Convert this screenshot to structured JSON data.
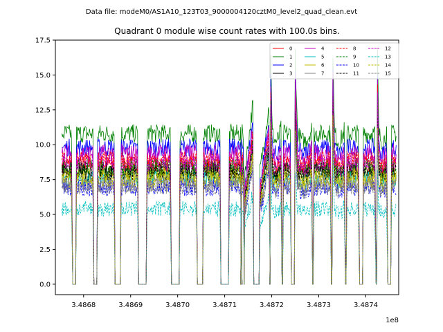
{
  "figure": {
    "suptitle": "Data file: modeM0/AS1A10_123T03_9000004120cztM0_level2_quad_clean.evt"
  },
  "chart_data": {
    "type": "line",
    "title": "Quadrant 0 module wise count rates with 100.0s bins.",
    "xlabel": "",
    "ylabel": "",
    "x_offset_label": "1e8",
    "xlim": [
      3.48674,
      3.48747
    ],
    "ylim": [
      -0.75,
      17.5
    ],
    "x_ticks": [
      3.4868,
      3.4869,
      3.487,
      3.4871,
      3.4872,
      3.4873,
      3.4874
    ],
    "x_tick_labels": [
      "3.4868",
      "3.4869",
      "3.4870",
      "3.4871",
      "3.4872",
      "3.4873",
      "3.4874"
    ],
    "y_ticks": [
      0,
      2.5,
      5,
      7.5,
      10,
      12.5,
      15,
      17.5
    ],
    "y_tick_labels": [
      "0.0",
      "2.5",
      "5.0",
      "7.5",
      "10.0",
      "12.5",
      "15.0",
      "17.5"
    ],
    "grid": false,
    "legend_position": "top-right",
    "legend_columns": 4,
    "series": [
      {
        "name": "0",
        "color": "#ff0000",
        "dash": "solid",
        "level": 8.6
      },
      {
        "name": "1",
        "color": "#008000",
        "dash": "solid",
        "level": 10.8
      },
      {
        "name": "2",
        "color": "#0000ff",
        "dash": "solid",
        "level": 9.8
      },
      {
        "name": "3",
        "color": "#000000",
        "dash": "solid",
        "level": 8.2
      },
      {
        "name": "4",
        "color": "#bf00bf",
        "dash": "solid",
        "level": 9.4
      },
      {
        "name": "5",
        "color": "#00bfbf",
        "dash": "solid",
        "level": 7.6
      },
      {
        "name": "6",
        "color": "#bfbf00",
        "dash": "solid",
        "level": 7.9
      },
      {
        "name": "7",
        "color": "#808080",
        "dash": "solid",
        "level": 7.2
      },
      {
        "name": "8",
        "color": "#ff0000",
        "dash": "dashed",
        "level": 8.9
      },
      {
        "name": "9",
        "color": "#008000",
        "dash": "dashed",
        "level": 8.4
      },
      {
        "name": "10",
        "color": "#0000ff",
        "dash": "dashed",
        "level": 6.9
      },
      {
        "name": "11",
        "color": "#000000",
        "dash": "dashed",
        "level": 8.0
      },
      {
        "name": "12",
        "color": "#bf00bf",
        "dash": "dashed",
        "level": 8.7
      },
      {
        "name": "13",
        "color": "#00bfbf",
        "dash": "dashed",
        "level": 5.4
      },
      {
        "name": "14",
        "color": "#bfbf00",
        "dash": "dashed",
        "level": 7.5
      },
      {
        "name": "15",
        "color": "#808080",
        "dash": "dashed",
        "level": 7.0
      }
    ],
    "segments": [
      {
        "start": 3.486755,
        "end": 3.486775,
        "shape": "flat"
      },
      {
        "start": 3.486785,
        "end": 3.48682,
        "shape": "flat"
      },
      {
        "start": 3.48683,
        "end": 3.486865,
        "shape": "flat"
      },
      {
        "start": 3.48688,
        "end": 3.486915,
        "shape": "flat"
      },
      {
        "start": 3.486935,
        "end": 3.486985,
        "shape": "flat"
      },
      {
        "start": 3.487005,
        "end": 3.48704,
        "shape": "flat"
      },
      {
        "start": 3.487055,
        "end": 3.48709,
        "shape": "flat"
      },
      {
        "start": 3.48711,
        "end": 3.487135,
        "shape": "flat"
      },
      {
        "start": 3.487136,
        "end": 3.48714,
        "shape": "flat"
      },
      {
        "start": 3.487143,
        "end": 3.48716,
        "shape": "rise"
      },
      {
        "start": 3.487175,
        "end": 3.487195,
        "shape": "rise"
      },
      {
        "start": 3.487198,
        "end": 3.48722,
        "shape": "peak"
      },
      {
        "start": 3.487225,
        "end": 3.48724,
        "shape": "flat"
      },
      {
        "start": 3.48725,
        "end": 3.487285,
        "shape": "peak"
      },
      {
        "start": 3.48729,
        "end": 3.487325,
        "shape": "flat"
      },
      {
        "start": 3.48733,
        "end": 3.487355,
        "shape": "peak"
      },
      {
        "start": 3.48736,
        "end": 3.487385,
        "shape": "flat"
      },
      {
        "start": 3.487395,
        "end": 3.48742,
        "shape": "flat"
      },
      {
        "start": 3.487425,
        "end": 3.487445,
        "shape": "peak"
      },
      {
        "start": 3.487455,
        "end": 3.487465,
        "shape": "flat"
      }
    ]
  }
}
